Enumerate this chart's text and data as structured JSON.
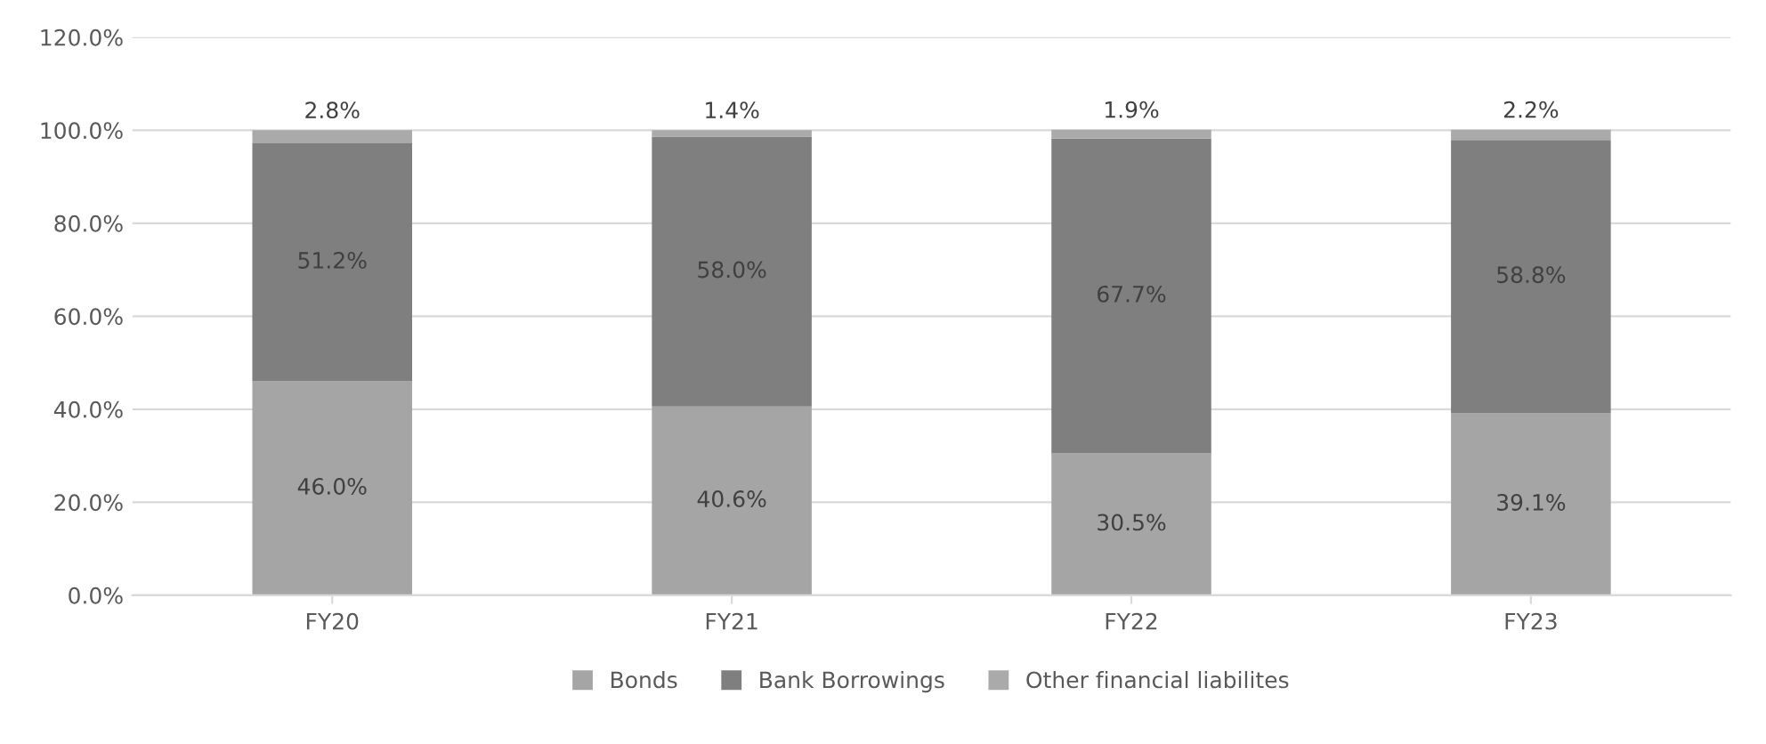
{
  "chart_data": {
    "type": "bar",
    "stacked": true,
    "categories": [
      "FY20",
      "FY21",
      "FY22",
      "FY23"
    ],
    "series": [
      {
        "name": "Bonds",
        "color": "#a5a5a5",
        "values": [
          46.0,
          40.6,
          30.5,
          39.1
        ],
        "value_labels": [
          "46.0%",
          "40.6%",
          "30.5%",
          "39.1%"
        ]
      },
      {
        "name": "Bank Borrowings",
        "color": "#7f7f7f",
        "values": [
          51.2,
          58.0,
          67.7,
          58.8
        ],
        "value_labels": [
          "51.2%",
          "58.0%",
          "67.7%",
          "58.8%"
        ]
      },
      {
        "name": "Other financial liabilites",
        "color": "#aaaaaa",
        "values": [
          2.8,
          1.4,
          1.9,
          2.2
        ],
        "value_labels": [
          "2.8%",
          "1.4%",
          "1.9%",
          "2.2%"
        ]
      }
    ],
    "ylim": [
      0,
      120
    ],
    "yticks": [
      {
        "value": 0,
        "label": "0.0%"
      },
      {
        "value": 20,
        "label": "20.0%"
      },
      {
        "value": 40,
        "label": "40.0%"
      },
      {
        "value": 60,
        "label": "60.0%"
      },
      {
        "value": 80,
        "label": "80.0%"
      },
      {
        "value": 100,
        "label": "100.0%"
      },
      {
        "value": 120,
        "label": "120.0%"
      }
    ],
    "grid": "y",
    "legend": "bottom"
  }
}
